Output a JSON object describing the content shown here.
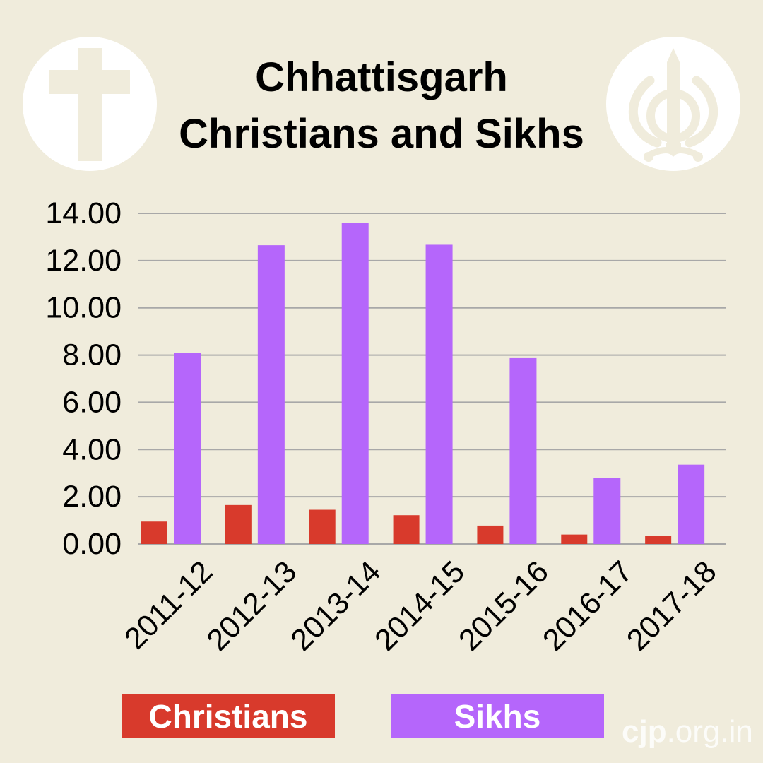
{
  "title_line1": "Chhattisgarh",
  "title_line2": "Christians and Sikhs",
  "colors": {
    "background": "#f0ecdc",
    "christians": "#d83a2c",
    "sikhs": "#b566fb",
    "grid": "#a8a8a8",
    "emblem_bg": "#ffffff",
    "emblem_fg": "#f0ecdc"
  },
  "icons": {
    "left": "cross-icon",
    "right": "khanda-icon"
  },
  "watermark": {
    "brand": "cjp",
    "domain": ".org.in"
  },
  "chart_data": {
    "type": "bar",
    "categories": [
      "2011-12",
      "2012-13",
      "2013-14",
      "2014-15",
      "2015-16",
      "2016-17",
      "2017-18"
    ],
    "series": [
      {
        "name": "Christians",
        "values": [
          0.95,
          1.65,
          1.45,
          1.22,
          0.78,
          0.4,
          0.33
        ]
      },
      {
        "name": "Sikhs",
        "values": [
          8.08,
          12.65,
          13.6,
          12.67,
          7.87,
          2.79,
          3.36
        ]
      }
    ],
    "yticks": [
      "0.00",
      "2.00",
      "4.00",
      "6.00",
      "8.00",
      "10.00",
      "12.00",
      "14.00"
    ],
    "ylim": [
      0,
      14
    ],
    "grid": true,
    "legend_position": "bottom",
    "title": "Chhattisgarh Christians and Sikhs"
  }
}
